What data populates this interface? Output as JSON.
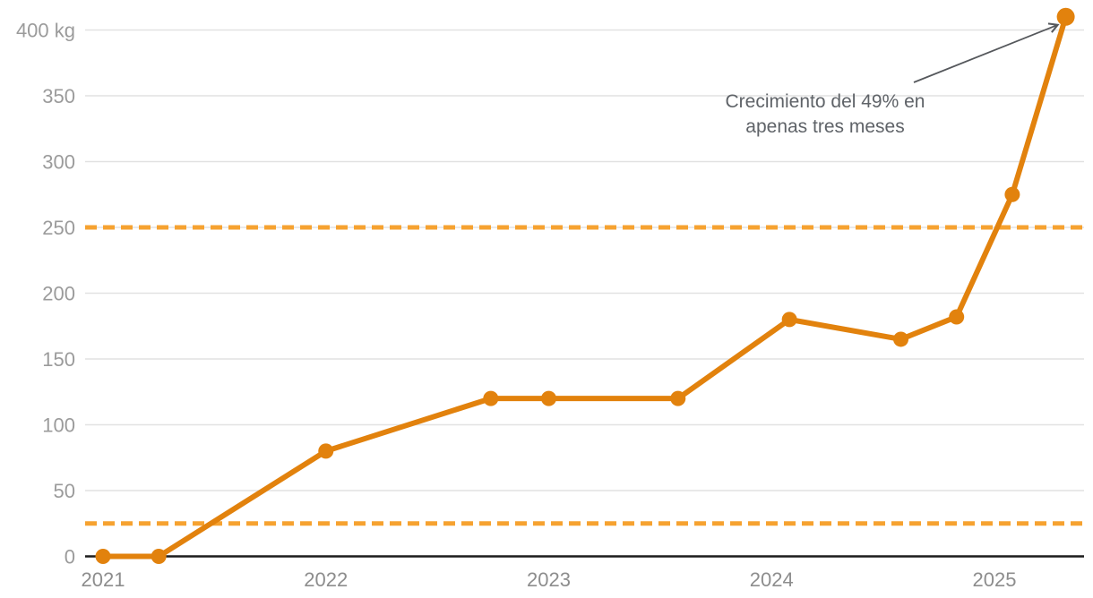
{
  "chart_data": {
    "type": "line",
    "unit": "kg",
    "x": [
      2021.0,
      2021.25,
      2022.0,
      2022.74,
      2023.0,
      2023.58,
      2024.08,
      2024.58,
      2024.83,
      2025.08,
      2025.32
    ],
    "values": [
      0,
      0,
      80,
      120,
      120,
      120,
      180,
      165,
      182,
      275,
      410
    ],
    "x_axis": {
      "ticks": [
        2021,
        2022,
        2023,
        2024,
        2025
      ],
      "labels": [
        "2021",
        "2022",
        "2023",
        "2024",
        "2025"
      ]
    },
    "y_axis": {
      "ticks": [
        0,
        50,
        100,
        150,
        200,
        250,
        300,
        350,
        400
      ],
      "labels": [
        "0",
        "50",
        "100",
        "150",
        "200",
        "250",
        "300",
        "350",
        "400 kg"
      ],
      "range": [
        0,
        415
      ]
    },
    "reference_lines": [
      {
        "value": 250,
        "style": "dashed"
      },
      {
        "value": 25,
        "style": "dashed"
      }
    ],
    "annotation": {
      "lines": [
        "Crecimiento del 49% en",
        "apenas tres meses"
      ],
      "arrow_to_point_index": 10
    },
    "grid": true,
    "legend": "none",
    "colors": {
      "line": "#E2820D",
      "marker": "#E2820D",
      "dashed_line": "#F6A230",
      "gridline": "#E2E2E2",
      "axis_line": "#1C1C1C",
      "y_tick_label": "#9B9B9B",
      "x_tick_label": "#8D8D8D",
      "annotation_text": "#5F6368",
      "arrow": "#55585C"
    }
  }
}
